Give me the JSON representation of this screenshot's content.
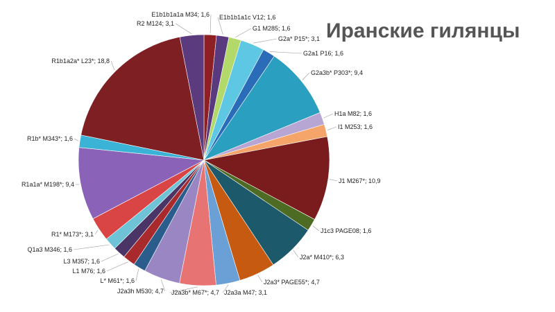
{
  "chart_data": {
    "type": "pie",
    "title": "Иранские гилянцы",
    "slices": [
      {
        "label": "E1b1b1a1a M34; 1,6",
        "value": 1.6,
        "color": "#8e1f24"
      },
      {
        "label": "E1b1b1a1c V12; 1,6",
        "value": 1.6,
        "color": "#5a3a7e"
      },
      {
        "label": "G1 M285; 1,6",
        "value": 1.6,
        "color": "#b3d96b"
      },
      {
        "label": "G2a* P15*; 3,1",
        "value": 3.1,
        "color": "#5ec8e4"
      },
      {
        "label": "G2a1 P16; 1,6",
        "value": 1.6,
        "color": "#2b6cb8"
      },
      {
        "label": "G2a3b* P303*; 9,4",
        "value": 9.4,
        "color": "#2a9fbf"
      },
      {
        "label": "H1a M82; 1,6",
        "value": 1.6,
        "color": "#b7a6d3"
      },
      {
        "label": "I1 M253; 1,6",
        "value": 1.6,
        "color": "#f5a56a"
      },
      {
        "label": "J1 M267*; 10,9",
        "value": 10.9,
        "color": "#7a1c1e"
      },
      {
        "label": "J1c3 PAGE08; 1,6",
        "value": 1.6,
        "color": "#4d6b22"
      },
      {
        "label": "J2a* M410*; 6,3",
        "value": 6.3,
        "color": "#1c5a6b"
      },
      {
        "label": "J2a3* PAGE55*; 4,7",
        "value": 4.7,
        "color": "#c55a10"
      },
      {
        "label": "J2a3a M47; 3,1",
        "value": 3.1,
        "color": "#6aa0d6"
      },
      {
        "label": "J2a3b* M67*; 4,7",
        "value": 4.7,
        "color": "#e87373"
      },
      {
        "label": "J2a3h M530; 4,7",
        "value": 4.7,
        "color": "#9a86c3"
      },
      {
        "label": "L* M61*; 1,6",
        "value": 1.6,
        "color": "#2a5d8c"
      },
      {
        "label": "L1 M76; 1,6",
        "value": 1.6,
        "color": "#a82a2d"
      },
      {
        "label": "L3 M357; 1,6",
        "value": 1.6,
        "color": "#4a3566"
      },
      {
        "label": "Q1a3 M346; 1,6",
        "value": 1.6,
        "color": "#6ec3d6"
      },
      {
        "label": "R1* M173*; 3,1",
        "value": 3.1,
        "color": "#d94545"
      },
      {
        "label": "R1a1a* M198*; 9,4",
        "value": 9.4,
        "color": "#8a63b8"
      },
      {
        "label": "R1b* M343*; 1,6",
        "value": 1.6,
        "color": "#3bb3d6"
      },
      {
        "label": "R1b1a2a* L23*; 18,8",
        "value": 18.8,
        "color": "#7d1f23"
      },
      {
        "label": "R2 M124; 3,1",
        "value": 3.1,
        "color": "#5b3a7d"
      }
    ]
  }
}
